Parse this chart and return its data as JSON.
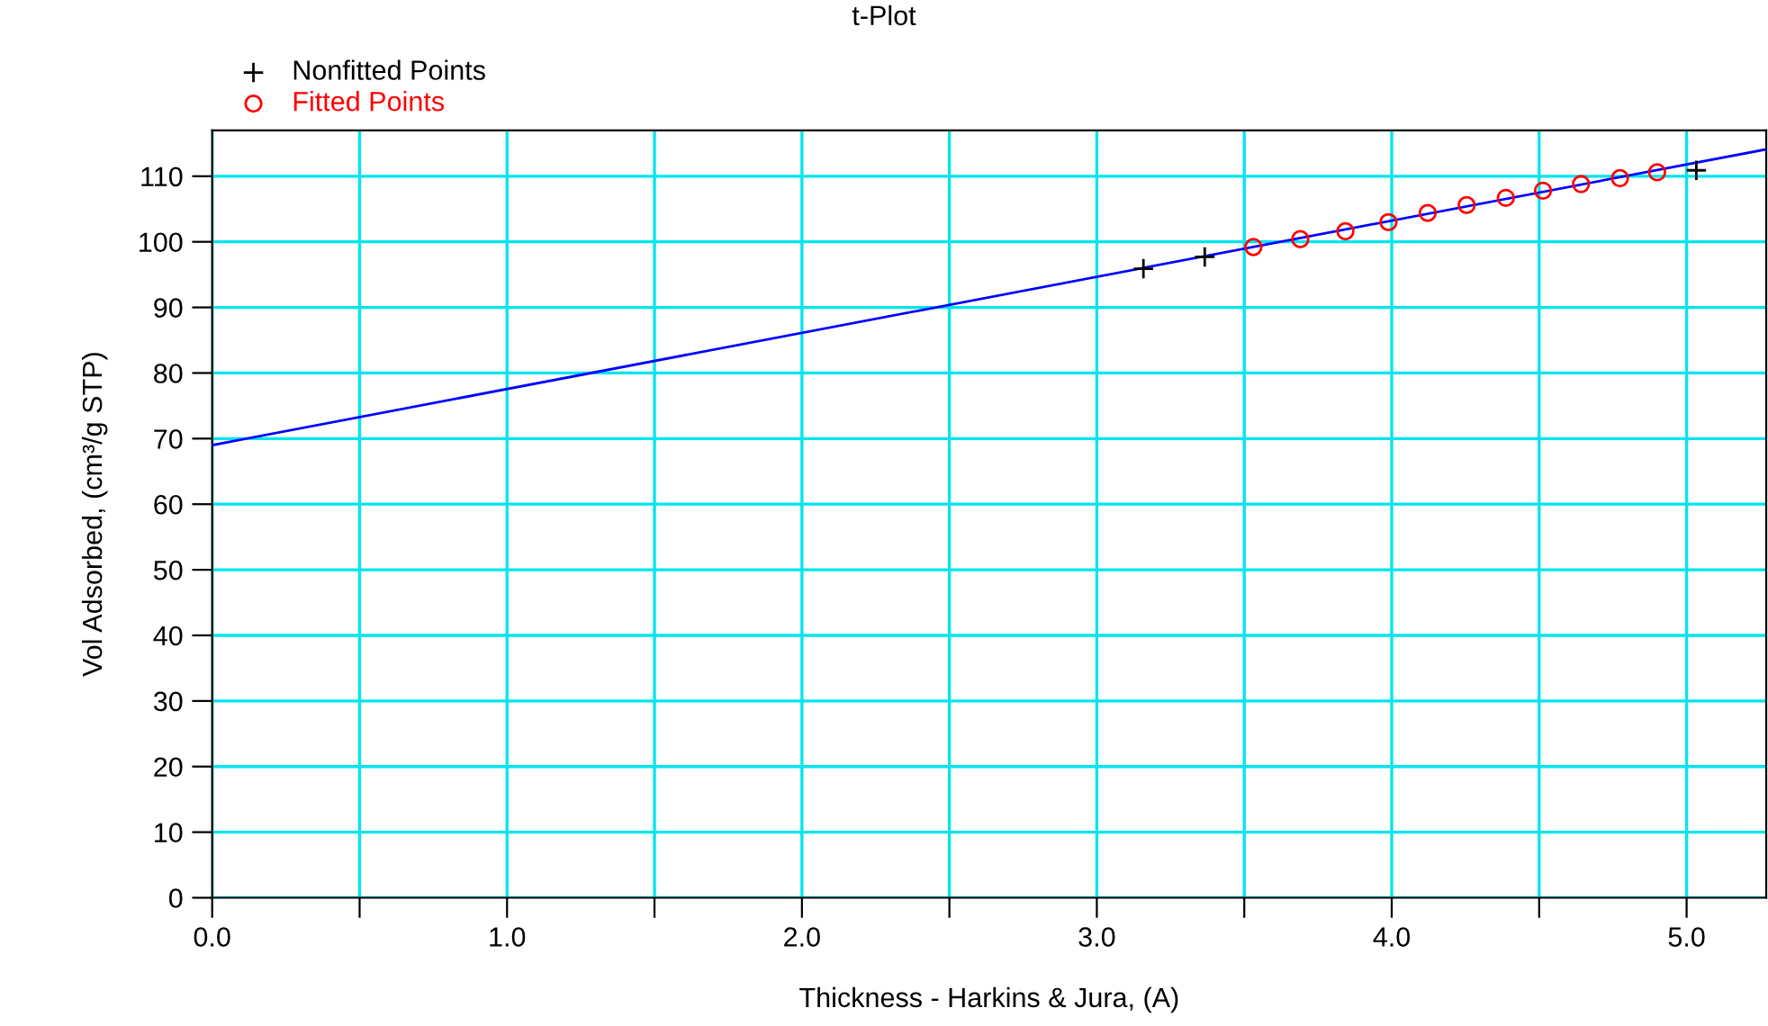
{
  "chart_data": {
    "type": "scatter",
    "title": "t-Plot",
    "xlabel": "Thickness - Harkins & Jura, (A)",
    "ylabel": "Vol Adsorbed, (cm³/g STP)",
    "xlim": [
      0,
      5.27
    ],
    "ylim": [
      0,
      117
    ],
    "xticks": [
      {
        "value": 0,
        "label": "0.0"
      },
      {
        "value": 0.5,
        "label": null
      },
      {
        "value": 1,
        "label": "1.0"
      },
      {
        "value": 1.5,
        "label": null
      },
      {
        "value": 2,
        "label": "2.0"
      },
      {
        "value": 2.5,
        "label": null
      },
      {
        "value": 3,
        "label": "3.0"
      },
      {
        "value": 3.5,
        "label": null
      },
      {
        "value": 4,
        "label": "4.0"
      },
      {
        "value": 4.5,
        "label": null
      },
      {
        "value": 5,
        "label": "5.0"
      }
    ],
    "yticks": [
      0,
      10,
      20,
      30,
      40,
      50,
      60,
      70,
      80,
      90,
      100,
      110
    ],
    "grid": true,
    "legend": "top left",
    "series": [
      {
        "name": "Nonfitted Points",
        "marker": "cross",
        "color": "#000000",
        "x": [
          3.158,
          3.366,
          5.033
        ],
        "values": [
          95.9,
          97.7,
          110.9
        ]
      },
      {
        "name": "Fitted Points",
        "marker": "circle",
        "color": "#ff0000",
        "x": [
          3.531,
          3.69,
          3.843,
          3.989,
          4.122,
          4.254,
          4.387,
          4.513,
          4.642,
          4.774,
          4.9
        ],
        "values": [
          99.2,
          100.4,
          101.6,
          103.0,
          104.4,
          105.6,
          106.7,
          107.8,
          108.8,
          109.7,
          110.6
        ]
      },
      {
        "type": "line",
        "color": "#0000ff",
        "line_style": "solid",
        "marker": "none",
        "x": [
          0,
          5.27
        ],
        "values": [
          69.0,
          114.1
        ]
      }
    ]
  }
}
